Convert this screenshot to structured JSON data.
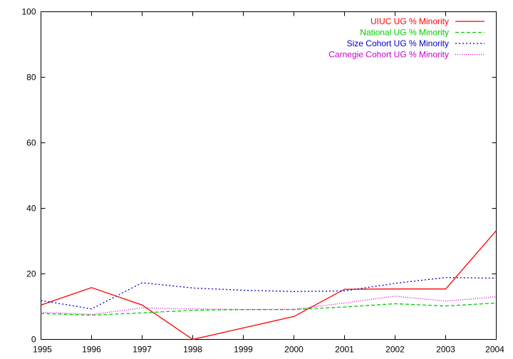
{
  "chart_data": {
    "type": "line",
    "title": "",
    "xlabel": "",
    "ylabel": "",
    "x": [
      1995,
      1996,
      1997,
      1998,
      1999,
      2000,
      2001,
      2002,
      2003,
      2004
    ],
    "x_ticks": [
      "1995",
      "1996",
      "1997",
      "1998",
      "1999",
      "2000",
      "2001",
      "2002",
      "2003",
      "2004"
    ],
    "y_ticks": [
      "0",
      "20",
      "40",
      "60",
      "80",
      "100"
    ],
    "xlim": [
      1995,
      2004
    ],
    "ylim": [
      0,
      100
    ],
    "grid": false,
    "legend_position": "top-right",
    "series": [
      {
        "name": "UIUC UG % Minority",
        "color": "#ff0000",
        "dash": "solid",
        "values": [
          10.5,
          15.8,
          10.5,
          0.0,
          3.5,
          7.0,
          15.3,
          15.4,
          15.4,
          33.2
        ]
      },
      {
        "name": "National UG % Minority",
        "color": "#00cc00",
        "dash": "dashed",
        "values": [
          7.9,
          7.4,
          8.1,
          8.9,
          9.1,
          9.1,
          9.9,
          10.9,
          10.2,
          11.1
        ]
      },
      {
        "name": "Size Cohort UG % Minority",
        "color": "#0000cc",
        "dash": "dotted",
        "values": [
          11.9,
          9.3,
          17.3,
          15.7,
          15.0,
          14.6,
          14.8,
          17.1,
          18.9,
          18.7
        ]
      },
      {
        "name": "Carnegie Cohort UG % Minority",
        "color": "#cc00cc",
        "dash": "fine-dotted",
        "values": [
          8.3,
          7.6,
          9.6,
          9.3,
          9.1,
          9.2,
          11.1,
          13.2,
          11.7,
          13.0
        ]
      }
    ]
  }
}
